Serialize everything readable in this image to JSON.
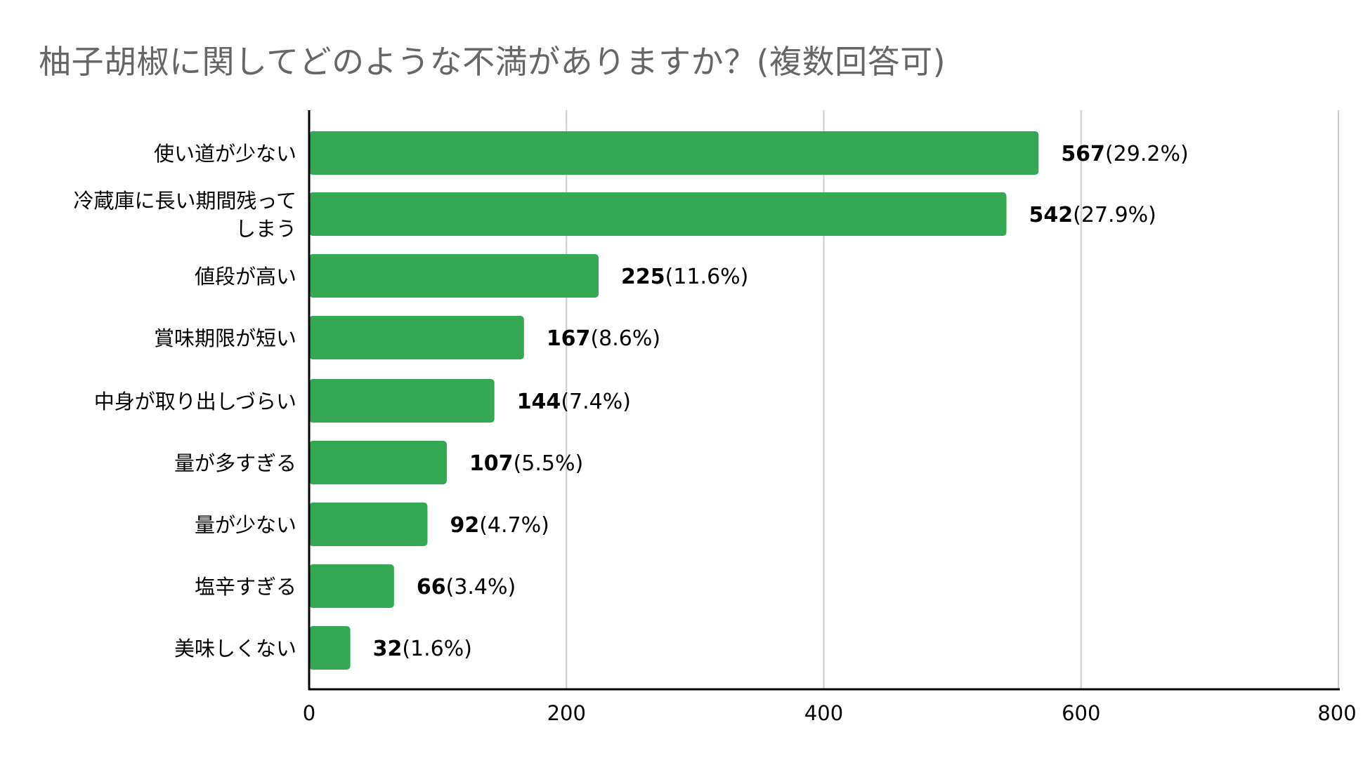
{
  "chart_data": {
    "type": "bar",
    "orientation": "horizontal",
    "title": "柚子胡椒に関してどのような不満がありますか？(複数回答可)",
    "categories": [
      "使い道が少ない",
      "冷蔵庫に長い期間残ってしまう",
      "値段が高い",
      "賞味期限が短い",
      "中身が取り出しづらい",
      "量が多すぎる",
      "量が少ない",
      "塩辛すぎる",
      "美味しくない"
    ],
    "category_lines": [
      [
        "使い道が少ない"
      ],
      [
        "冷蔵庫に長い期間残って",
        "しまう"
      ],
      [
        "値段が高い"
      ],
      [
        "賞味期限が短い"
      ],
      [
        "中身が取り出しづらい"
      ],
      [
        "量が多すぎる"
      ],
      [
        "量が少ない"
      ],
      [
        "塩辛すぎる"
      ],
      [
        "美味しくない"
      ]
    ],
    "values": [
      567,
      542,
      225,
      167,
      144,
      107,
      92,
      66,
      32
    ],
    "percent_labels": [
      "(29.2%)",
      "(27.9%)",
      "(11.6%)",
      "(8.6%)",
      "(7.4%)",
      "(5.5%)",
      "(4.7%)",
      "(3.4%)",
      "(1.6%)"
    ],
    "xlim": [
      0,
      800
    ],
    "x_ticks": [
      0,
      200,
      400,
      600,
      800
    ],
    "grid": true,
    "legend": "none",
    "colors": {
      "bar": "#34a853",
      "grid": "#cccccc",
      "axis": "#000000",
      "title": "#666666",
      "text": "#000000"
    }
  }
}
